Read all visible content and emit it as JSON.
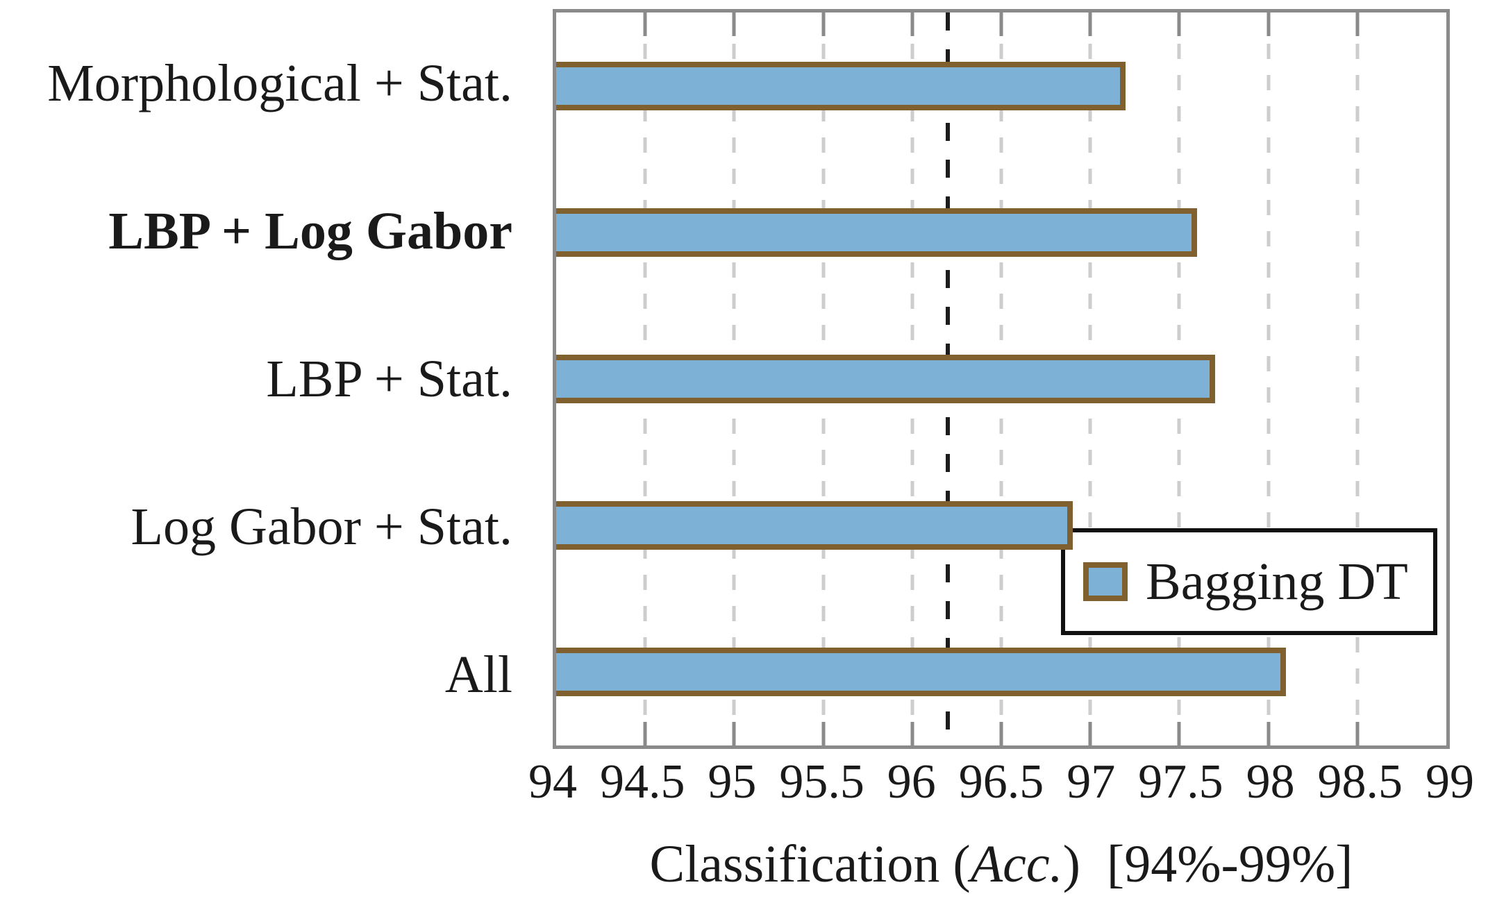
{
  "chart_data": {
    "type": "bar",
    "orientation": "horizontal",
    "categories": [
      "Morphological + Stat.",
      "LBP + Log Gabor",
      "LBP + Stat.",
      "Log Gabor + Stat.",
      "All"
    ],
    "values": [
      97.2,
      97.6,
      97.7,
      96.9,
      98.1
    ],
    "bold_category_index": 1,
    "series": [
      {
        "name": "Bagging DT",
        "values": [
          97.2,
          97.6,
          97.7,
          96.9,
          98.1
        ]
      }
    ],
    "title": "",
    "xlabel_prefix": "Classification (",
    "xlabel_italic": "Acc.",
    "xlabel_suffix": ")  [94%-99%]",
    "ylabel": "",
    "xlim": [
      94,
      99
    ],
    "xticks": [
      94,
      94.5,
      95,
      95.5,
      96,
      96.5,
      97,
      97.5,
      98,
      98.5,
      99
    ],
    "xtick_labels": [
      "94",
      "94.5",
      "95",
      "95.5",
      "96",
      "96.5",
      "97",
      "97.5",
      "98",
      "98.5",
      "99"
    ],
    "reference_line_x": 96.2,
    "grid": "vertical dashed gridlines at every 0.5 tick",
    "legend_position": "inside middle-right",
    "colors": {
      "bar_fill": "#7db1d6",
      "bar_border": "#80602e",
      "axis": "#8a8a8a",
      "gridline": "#cdcdcd",
      "reference_line": "#1c1c1c",
      "legend_border": "#111111",
      "text": "#1a1a1a",
      "background": "#ffffff"
    }
  },
  "legend": {
    "label": "Bagging DT"
  }
}
